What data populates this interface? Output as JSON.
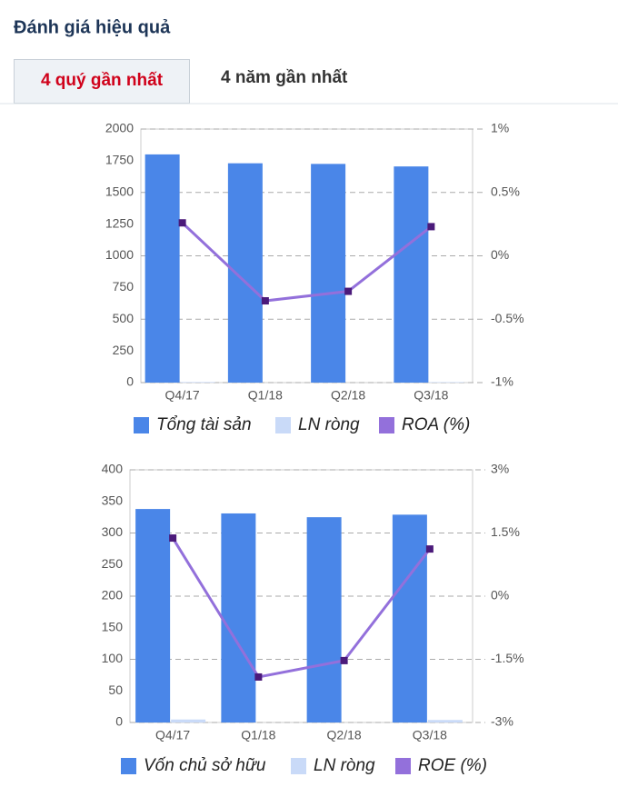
{
  "header": {
    "title": "Đánh giá hiệu quả"
  },
  "tabs": [
    "4 quý gần nhất",
    "4 năm gần nhất"
  ],
  "chart_data": [
    {
      "type": "bar",
      "categories": [
        "Q4/17",
        "Q1/18",
        "Q2/18",
        "Q3/18"
      ],
      "series": [
        {
          "name": "Tổng tài sản",
          "color": "#4a86e8",
          "values": [
            1800,
            1730,
            1725,
            1705
          ]
        },
        {
          "name": "LN ròng",
          "color": "#c9daf8",
          "values": [
            4.7,
            -6.1,
            -4.8,
            3.9
          ]
        },
        {
          "name": "ROA (%)",
          "color": "#9370db",
          "type": "line",
          "axis": "y2",
          "values": [
            0.26,
            -0.355,
            -0.28,
            0.23
          ]
        }
      ],
      "ylim": [
        0,
        2000
      ],
      "yticks": [
        0,
        250,
        500,
        750,
        1000,
        1250,
        1500,
        1750,
        2000
      ],
      "y2lim": [
        -1,
        1
      ],
      "y2ticks": [
        {
          "value": -1,
          "label": "-1%"
        },
        {
          "value": -0.5,
          "label": "-0.5%"
        },
        {
          "value": 0,
          "label": "0%"
        },
        {
          "value": 0.5,
          "label": "0.5%"
        },
        {
          "value": 1,
          "label": "1%"
        }
      ],
      "grid": true
    },
    {
      "type": "bar",
      "categories": [
        "Q4/17",
        "Q1/18",
        "Q2/18",
        "Q3/18"
      ],
      "series": [
        {
          "name": "Vốn chủ sở hữu",
          "color": "#4a86e8",
          "values": [
            338,
            331,
            325,
            329
          ]
        },
        {
          "name": "LN ròng",
          "color": "#c9daf8",
          "values": [
            4.7,
            -6.1,
            -4.8,
            3.9
          ]
        },
        {
          "name": "ROE (%)",
          "color": "#9370db",
          "type": "line",
          "axis": "y2",
          "values": [
            1.38,
            -1.92,
            -1.53,
            1.12
          ]
        }
      ],
      "ylim": [
        0,
        400
      ],
      "yticks": [
        0,
        50,
        100,
        150,
        200,
        250,
        300,
        350,
        400
      ],
      "y2lim": [
        -3,
        3
      ],
      "y2ticks": [
        {
          "value": -3,
          "label": "-3%"
        },
        {
          "value": -1.5,
          "label": "-1.5%"
        },
        {
          "value": 0,
          "label": "0%"
        },
        {
          "value": 1.5,
          "label": "1.5%"
        },
        {
          "value": 3,
          "label": "3%"
        }
      ],
      "grid": true
    }
  ]
}
